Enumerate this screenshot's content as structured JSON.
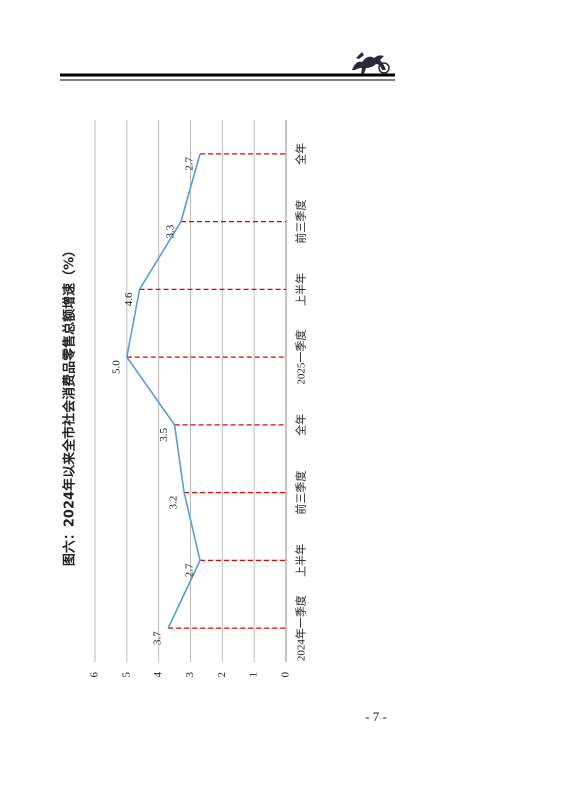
{
  "page_number": "- 7 -",
  "chart_data": {
    "type": "line",
    "title": "图六：2024年以来全市社会消费品零售总额增速（%）",
    "categories": [
      "2024年一季度",
      "上半年",
      "前三季度",
      "全年",
      "2025一季度",
      "上半年",
      "前三季度",
      "全年"
    ],
    "series": [
      {
        "color": "#5b9bd5",
        "values": [
          3.7,
          2.7,
          3.2,
          3.5,
          5.0,
          4.6,
          3.3,
          2.7
        ],
        "value_labels": [
          "3.7",
          "2.7",
          "3.2",
          "3.5",
          "5.0",
          "4.6",
          "3.3",
          "2.7"
        ]
      }
    ],
    "ylim": [
      0,
      6
    ],
    "yticks": [
      0,
      1,
      2,
      3,
      4,
      5,
      6
    ],
    "grid": true,
    "drop_line_color": "#e00000"
  }
}
